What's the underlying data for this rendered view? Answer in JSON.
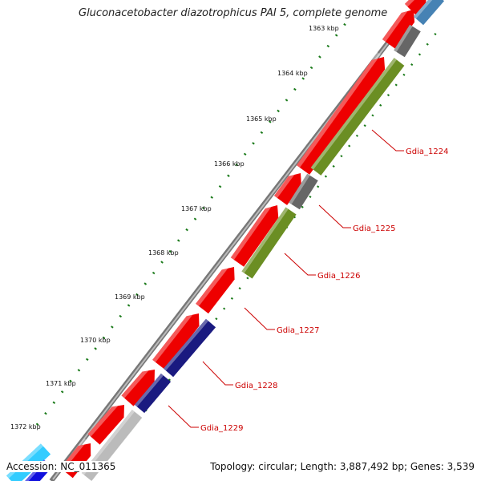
{
  "title": "Gluconacetobacter diazotrophicus PAI 5, complete genome",
  "accession": {
    "label": "Accession:",
    "value": "NC_011365"
  },
  "summary": {
    "topology_label": "Topology:",
    "topology": "circular",
    "length_label": "Length:",
    "length": "3,887,492 bp",
    "genes_label": "Genes:",
    "genes": "3,539"
  },
  "ruler": [
    "1363 kbp",
    "1364 kbp",
    "1365 kbp",
    "1366 kbp",
    "1367 kbp",
    "1368 kbp",
    "1369 kbp",
    "1370 kbp",
    "1371 kbp",
    "1372 kbp"
  ],
  "gene_labels": [
    "Gdia_1224",
    "Gdia_1225",
    "Gdia_1226",
    "Gdia_1227",
    "Gdia_1228",
    "Gdia_1229"
  ],
  "colors": {
    "forward_cds": "#ee0000",
    "reverse_a": "#6b8e23",
    "reverse_b": "#1a1a80",
    "reverse_c": "#666666",
    "reverse_d": "#bbbbbb",
    "steelblue": "#4682b4",
    "cyan": "#33ccff",
    "backbone": "#808080",
    "tick": "#1a7a1a",
    "label": "#cc0000"
  }
}
